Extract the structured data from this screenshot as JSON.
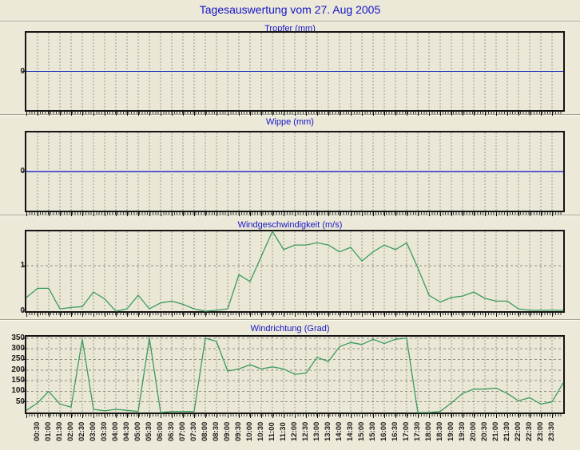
{
  "page": {
    "title": "Tagesauswertung vom 27. Aug 2005"
  },
  "colors": {
    "background": "#ECE9D8",
    "plot_background": "#EAE7D6",
    "heading_blue": "#1414C8",
    "line_green": "#3C9B5C",
    "tropfer_zero_line_blue": "#2233BB",
    "wippe_zero_line_blue": "#5A5AC8",
    "grid_gray": "#9A9A90",
    "border_black": "#141414"
  },
  "x_axis": {
    "start": "00:00",
    "end": "24:00",
    "step_minutes": 30,
    "labels": [
      "00:30",
      "01:00",
      "01:30",
      "02:00",
      "02:30",
      "03:00",
      "03:30",
      "04:00",
      "04:30",
      "05:00",
      "05:30",
      "06:00",
      "06:30",
      "07:00",
      "07:30",
      "08:00",
      "08:30",
      "09:00",
      "09:30",
      "10:00",
      "10:30",
      "11:00",
      "11:30",
      "12:00",
      "12:30",
      "13:00",
      "13:30",
      "14:00",
      "14:30",
      "15:00",
      "15:30",
      "16:00",
      "16:30",
      "17:00",
      "17:30",
      "18:00",
      "18:30",
      "19:00",
      "19:30",
      "20:00",
      "20:30",
      "21:00",
      "21:30",
      "22:00",
      "22:30",
      "23:00",
      "23:30"
    ]
  },
  "chart_data": [
    {
      "type": "line",
      "title": "Tropfer (mm)",
      "ylabel": "mm",
      "ylim": [
        -1,
        1
      ],
      "yticks": [
        0
      ],
      "hgrid": [],
      "zero_line": true,
      "line_color": "#2233BB",
      "values": [
        0,
        0,
        0,
        0,
        0,
        0,
        0,
        0,
        0,
        0,
        0,
        0,
        0,
        0,
        0,
        0,
        0,
        0,
        0,
        0,
        0,
        0,
        0,
        0,
        0,
        0,
        0,
        0,
        0,
        0,
        0,
        0,
        0,
        0,
        0,
        0,
        0,
        0,
        0,
        0,
        0,
        0,
        0,
        0,
        0,
        0,
        0,
        0,
        0
      ]
    },
    {
      "type": "line",
      "title": "Wippe (mm)",
      "ylabel": "mm",
      "ylim": [
        -1,
        1
      ],
      "yticks": [
        0
      ],
      "hgrid": [],
      "zero_line": true,
      "line_color": "#5A5AC8",
      "values": [
        0,
        0,
        0,
        0,
        0,
        0,
        0,
        0,
        0,
        0,
        0,
        0,
        0,
        0,
        0,
        0,
        0,
        0,
        0,
        0,
        0,
        0,
        0,
        0,
        0,
        0,
        0,
        0,
        0,
        0,
        0,
        0,
        0,
        0,
        0,
        0,
        0,
        0,
        0,
        0,
        0,
        0,
        0,
        0,
        0,
        0,
        0,
        0,
        0
      ]
    },
    {
      "type": "line",
      "title": "Windgeschwindigkeit (m/s)",
      "ylabel": "m/s",
      "ylim": [
        0,
        1.75
      ],
      "yticks": [
        0,
        1
      ],
      "hgrid": [
        1
      ],
      "zero_line": false,
      "line_color": "#3C9B5C",
      "values": [
        0.3,
        0.5,
        0.5,
        0.05,
        0.08,
        0.1,
        0.42,
        0.27,
        0.0,
        0.05,
        0.35,
        0.05,
        0.18,
        0.22,
        0.15,
        0.05,
        0.0,
        0.02,
        0.05,
        0.8,
        0.65,
        1.2,
        1.75,
        1.35,
        1.45,
        1.45,
        1.5,
        1.45,
        1.3,
        1.4,
        1.1,
        1.3,
        1.45,
        1.35,
        1.5,
        0.95,
        0.35,
        0.2,
        0.3,
        0.33,
        0.42,
        0.28,
        0.22,
        0.22,
        0.05,
        0.02,
        0.02,
        0.02,
        0.02
      ]
    },
    {
      "type": "line",
      "title": "Windrichtung (Grad)",
      "ylabel": "Grad",
      "ylim": [
        0,
        357
      ],
      "yticks": [
        50,
        100,
        150,
        200,
        250,
        300,
        350
      ],
      "hgrid": [
        50,
        100,
        150,
        200,
        250,
        300,
        350
      ],
      "zero_line": false,
      "line_color": "#3C9B5C",
      "values": [
        10,
        45,
        100,
        40,
        25,
        345,
        15,
        8,
        15,
        10,
        5,
        350,
        0,
        5,
        5,
        5,
        350,
        335,
        195,
        205,
        225,
        205,
        215,
        205,
        180,
        185,
        260,
        240,
        310,
        330,
        320,
        345,
        325,
        345,
        350,
        0,
        0,
        5,
        45,
        90,
        110,
        110,
        115,
        90,
        55,
        70,
        40,
        50,
        140
      ]
    }
  ]
}
